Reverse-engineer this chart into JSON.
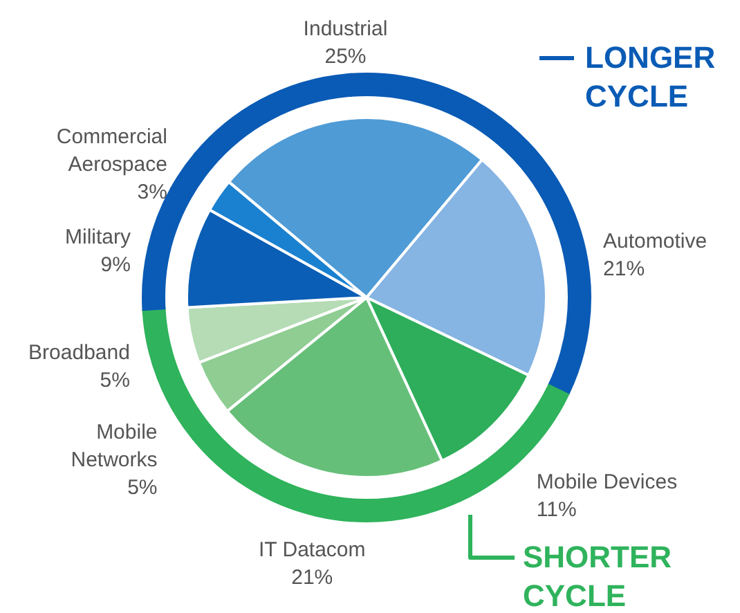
{
  "chart_data": {
    "type": "pie",
    "categories": [
      "Industrial",
      "Automotive",
      "Mobile Devices",
      "IT Datacom",
      "Mobile Networks",
      "Broadband",
      "Military",
      "Commercial Aerospace"
    ],
    "series": [
      {
        "values": [
          25,
          21,
          11,
          21,
          5,
          5,
          9,
          3
        ],
        "value_labels": [
          "25%",
          "21%",
          "11%",
          "21%",
          "5%",
          "5%",
          "9%",
          "3%"
        ],
        "colors": [
          "#4f9bd6",
          "#86b4e3",
          "#2eae5b",
          "#66bf79",
          "#8fcd93",
          "#b5dcb5",
          "#0b5eb5",
          "#1a80d0"
        ]
      },
      {
        "type": "donut",
        "values": [
          25,
          21,
          11,
          21,
          5,
          5,
          9,
          3
        ],
        "colors": [
          "#0a5bb5",
          "#0a5bb5",
          "#2fb35c",
          "#2fb35c",
          "#2fb35c",
          "#2fb35c",
          "#0a5bb5",
          "#0a5bb5"
        ]
      }
    ],
    "annotations": [
      "LONGER CYCLE",
      "SHORTER CYCLE"
    ]
  }
}
